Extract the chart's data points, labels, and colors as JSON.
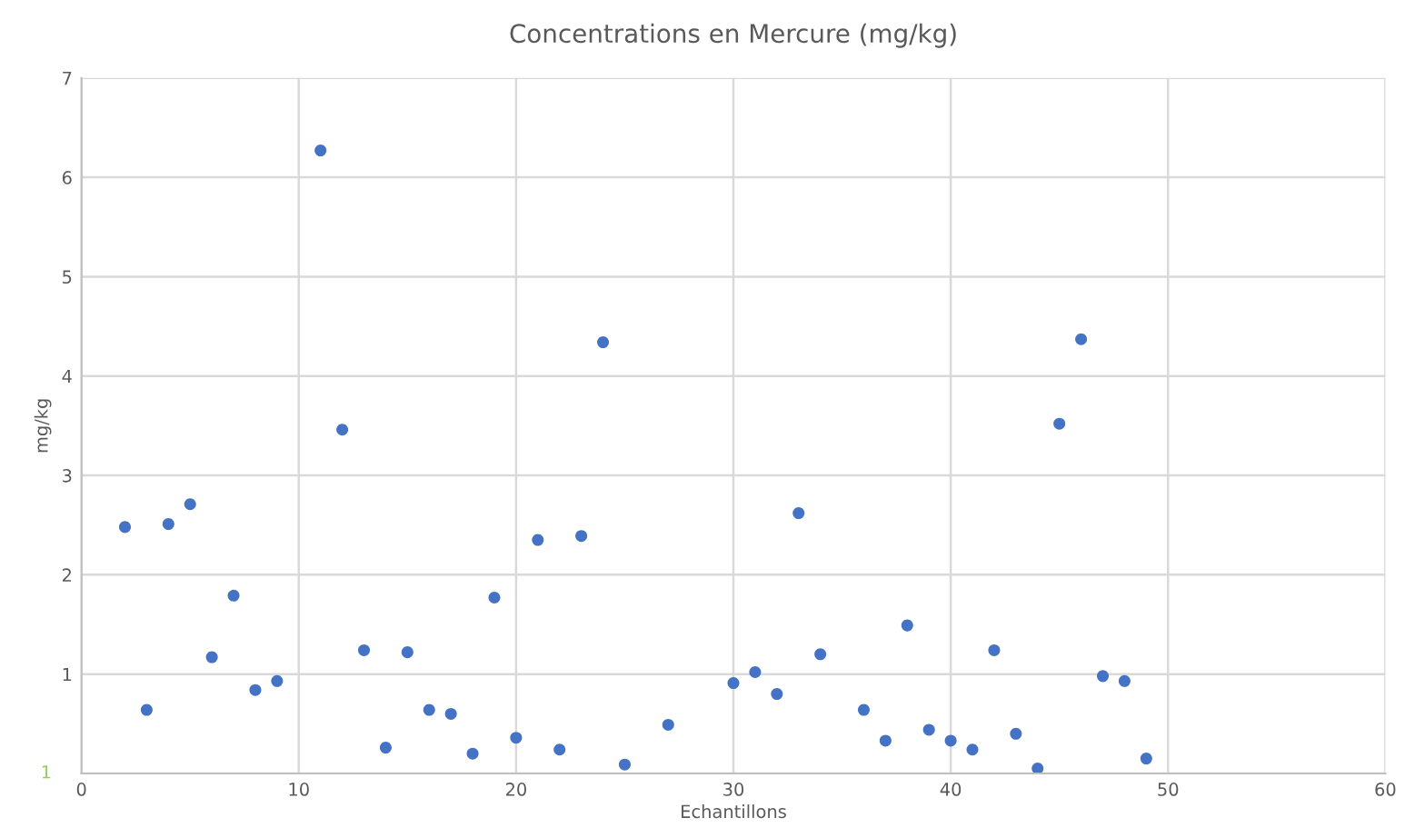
{
  "chart_data": {
    "type": "scatter",
    "title": "Concentrations en Mercure (mg/kg)",
    "xlabel": "Echantillons",
    "ylabel": "mg/kg",
    "x": [
      2,
      3,
      4,
      5,
      6,
      7,
      8,
      9,
      11,
      12,
      13,
      14,
      15,
      16,
      17,
      18,
      19,
      20,
      21,
      22,
      23,
      24,
      25,
      27,
      30,
      31,
      32,
      33,
      34,
      36,
      37,
      38,
      39,
      40,
      41,
      42,
      43,
      44,
      45,
      46,
      47,
      48,
      49
    ],
    "series": [
      {
        "color": "#4472c4",
        "values": [
          2.48,
          0.64,
          2.51,
          2.71,
          1.17,
          1.79,
          0.84,
          0.93,
          6.27,
          3.46,
          1.24,
          0.26,
          1.22,
          0.64,
          0.6,
          0.2,
          1.77,
          0.36,
          2.35,
          0.24,
          2.39,
          4.34,
          0.09,
          0.49,
          0.91,
          1.02,
          0.8,
          2.62,
          1.2,
          0.64,
          0.33,
          1.49,
          0.44,
          0.33,
          0.24,
          1.24,
          0.4,
          0.05,
          3.52,
          4.37,
          0.98,
          0.93,
          0.15
        ]
      }
    ],
    "xlim": [
      0,
      60
    ],
    "xticks": [
      0,
      10,
      20,
      30,
      40,
      50,
      60
    ],
    "ylim": [
      0,
      7
    ],
    "annotations": [
      "1"
    ],
    "yticks": [
      {
        "value": 0,
        "label": null
      },
      1,
      2,
      3,
      4,
      5,
      6,
      7
    ],
    "grid": true,
    "marker": "circle",
    "legend": false
  }
}
